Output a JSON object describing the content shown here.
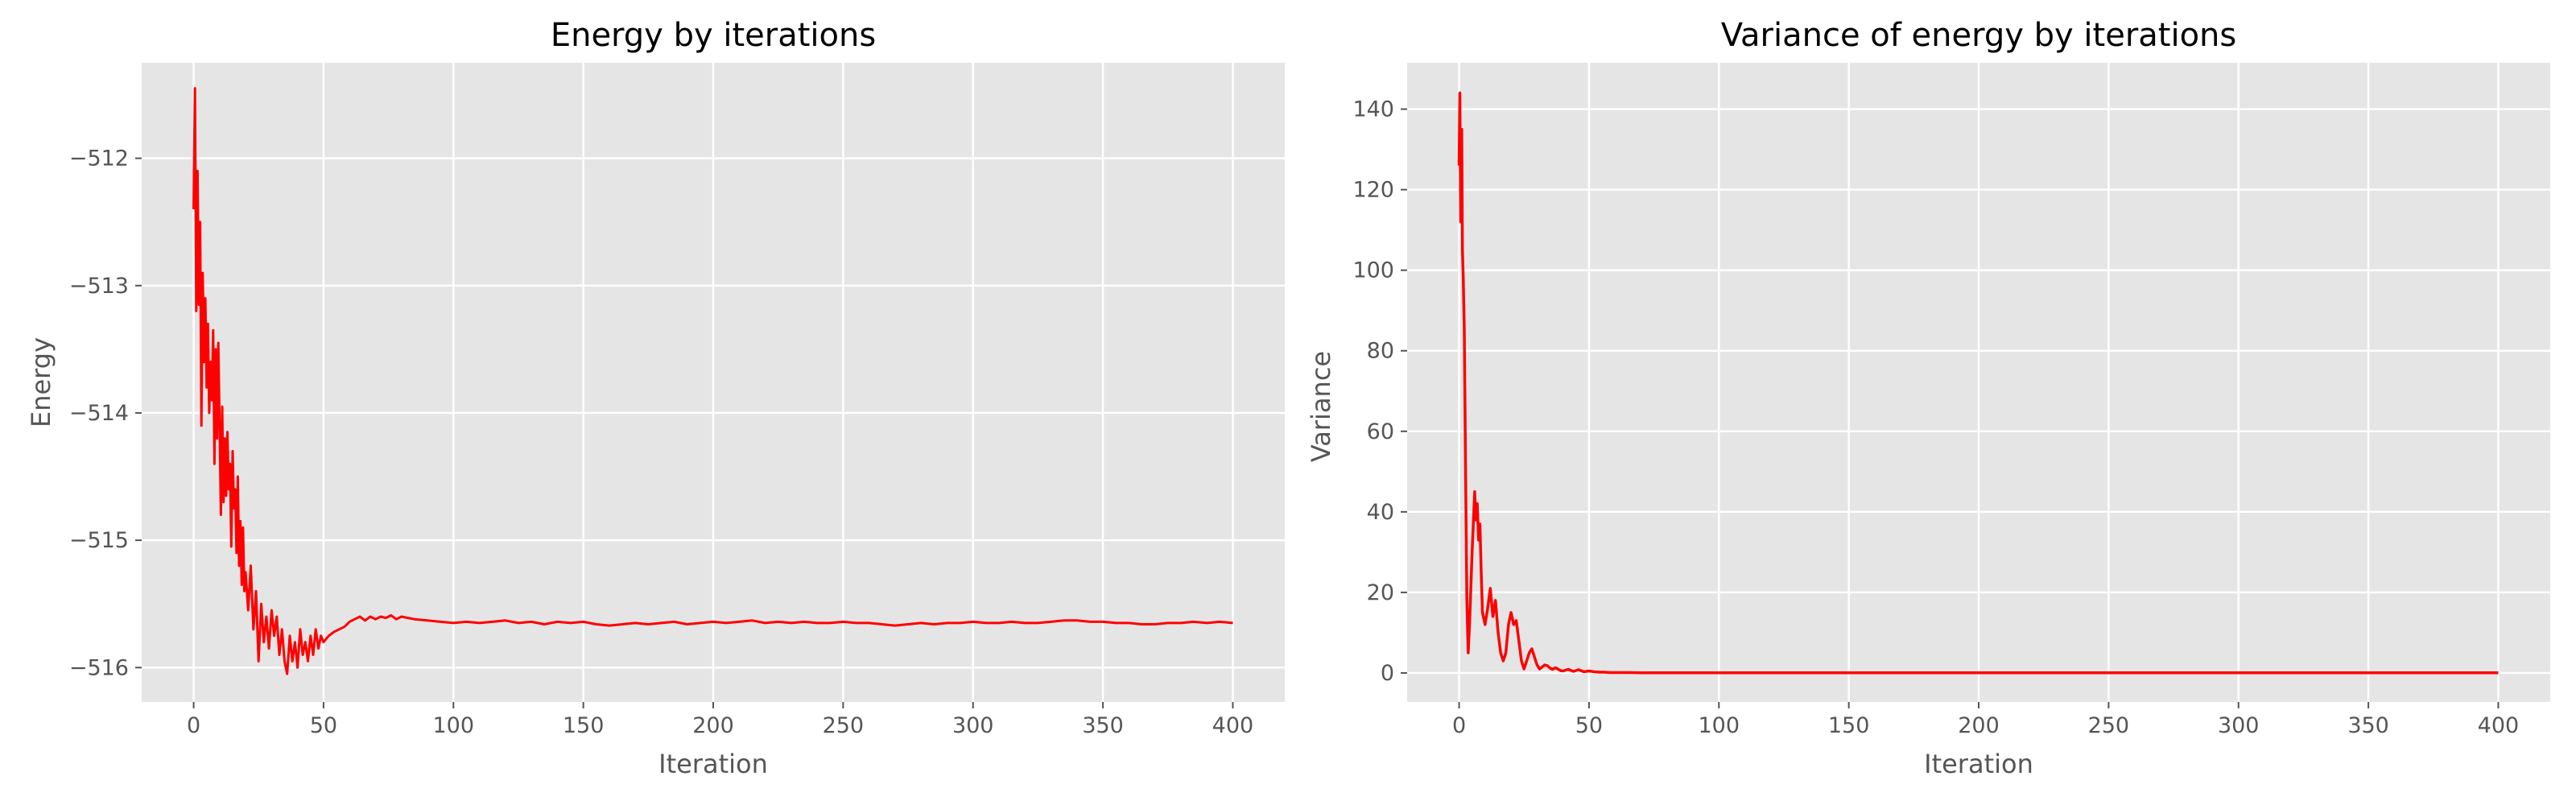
{
  "figure": {
    "line_color": "#ff0000",
    "axes_background": "#e5e5e5",
    "grid_color": "#ffffff",
    "style": "ggplot"
  },
  "chart_data": [
    {
      "id": "energy",
      "type": "line",
      "title": "Energy by iterations",
      "xlabel": "Iteration",
      "ylabel": "Energy",
      "xlim": [
        -20,
        420
      ],
      "ylim": [
        -516.27,
        -511.25
      ],
      "xticks": [
        0,
        50,
        100,
        150,
        200,
        250,
        300,
        350,
        400
      ],
      "xtick_labels": [
        "0",
        "50",
        "100",
        "150",
        "200",
        "250",
        "300",
        "350",
        "400"
      ],
      "yticks": [
        -516,
        -515,
        -514,
        -513,
        -512
      ],
      "ytick_labels": [
        "−516",
        "−515",
        "−514",
        "−513",
        "−512"
      ],
      "grid": true,
      "series": [
        {
          "color": "#ff0000",
          "x": [
            0,
            0.5,
            1,
            1.5,
            2,
            2.5,
            3,
            3.5,
            4,
            4.5,
            5,
            5.5,
            6,
            6.5,
            7,
            7.5,
            8,
            8.5,
            9,
            9.5,
            10,
            10.5,
            11,
            11.5,
            12,
            12.5,
            13,
            13.5,
            14,
            14.5,
            15,
            15.5,
            16,
            16.5,
            17,
            17.5,
            18,
            18.5,
            19,
            19.5,
            20,
            21,
            22,
            23,
            24,
            25,
            26,
            27,
            28,
            29,
            30,
            31,
            32,
            33,
            34,
            35,
            36,
            37,
            38,
            39,
            40,
            41,
            42,
            43,
            44,
            45,
            46,
            47,
            48,
            49,
            50,
            52,
            54,
            56,
            58,
            60,
            62,
            64,
            66,
            68,
            70,
            72,
            74,
            76,
            78,
            80,
            85,
            90,
            95,
            100,
            105,
            110,
            115,
            120,
            125,
            130,
            135,
            140,
            145,
            150,
            155,
            160,
            165,
            170,
            175,
            180,
            185,
            190,
            195,
            200,
            205,
            210,
            215,
            220,
            225,
            230,
            235,
            240,
            245,
            250,
            255,
            260,
            265,
            270,
            275,
            280,
            285,
            290,
            295,
            300,
            305,
            310,
            315,
            320,
            325,
            330,
            335,
            340,
            345,
            350,
            355,
            360,
            365,
            370,
            375,
            380,
            385,
            390,
            395,
            400
          ],
          "y": [
            -512.4,
            -511.45,
            -513.2,
            -512.1,
            -513.15,
            -512.5,
            -514.1,
            -512.9,
            -513.6,
            -513.1,
            -513.8,
            -513.3,
            -514.0,
            -513.6,
            -513.9,
            -513.35,
            -514.4,
            -513.5,
            -514.2,
            -513.45,
            -514.1,
            -514.8,
            -513.95,
            -514.7,
            -514.2,
            -514.65,
            -514.15,
            -514.6,
            -514.4,
            -515.05,
            -514.3,
            -514.75,
            -514.6,
            -515.1,
            -514.5,
            -515.2,
            -514.85,
            -515.35,
            -514.9,
            -515.4,
            -515.25,
            -515.55,
            -515.2,
            -515.7,
            -515.4,
            -515.95,
            -515.5,
            -515.8,
            -515.6,
            -515.85,
            -515.55,
            -515.75,
            -515.6,
            -515.9,
            -515.7,
            -515.95,
            -516.05,
            -515.75,
            -515.95,
            -515.8,
            -516.0,
            -515.7,
            -515.9,
            -515.8,
            -515.95,
            -515.75,
            -515.9,
            -515.7,
            -515.85,
            -515.75,
            -515.8,
            -515.75,
            -515.72,
            -515.7,
            -515.68,
            -515.64,
            -515.62,
            -515.6,
            -515.63,
            -515.6,
            -515.62,
            -515.6,
            -515.61,
            -515.59,
            -515.62,
            -515.6,
            -515.62,
            -515.63,
            -515.64,
            -515.65,
            -515.64,
            -515.65,
            -515.64,
            -515.63,
            -515.65,
            -515.64,
            -515.66,
            -515.64,
            -515.65,
            -515.64,
            -515.66,
            -515.67,
            -515.66,
            -515.65,
            -515.66,
            -515.65,
            -515.64,
            -515.66,
            -515.65,
            -515.64,
            -515.65,
            -515.64,
            -515.63,
            -515.65,
            -515.64,
            -515.65,
            -515.64,
            -515.65,
            -515.65,
            -515.64,
            -515.65,
            -515.65,
            -515.66,
            -515.67,
            -515.66,
            -515.65,
            -515.66,
            -515.65,
            -515.65,
            -515.64,
            -515.65,
            -515.65,
            -515.64,
            -515.65,
            -515.65,
            -515.64,
            -515.63,
            -515.63,
            -515.64,
            -515.64,
            -515.65,
            -515.65,
            -515.66,
            -515.66,
            -515.65,
            -515.65,
            -515.64,
            -515.65,
            -515.64,
            -515.65
          ]
        }
      ]
    },
    {
      "id": "variance",
      "type": "line",
      "title": "Variance of energy by iterations",
      "xlabel": "Iteration",
      "ylabel": "Variance",
      "xlim": [
        -20,
        420
      ],
      "ylim": [
        -7.2,
        151.5
      ],
      "xticks": [
        0,
        50,
        100,
        150,
        200,
        250,
        300,
        350,
        400
      ],
      "xtick_labels": [
        "0",
        "50",
        "100",
        "150",
        "200",
        "250",
        "300",
        "350",
        "400"
      ],
      "yticks": [
        0,
        20,
        40,
        60,
        80,
        100,
        120,
        140
      ],
      "ytick_labels": [
        "0",
        "20",
        "40",
        "60",
        "80",
        "100",
        "120",
        "140"
      ],
      "grid": true,
      "series": [
        {
          "color": "#ff0000",
          "x": [
            0,
            0.3,
            0.6,
            1,
            1.3,
            1.6,
            2,
            2.5,
            3,
            3.5,
            4,
            5,
            6,
            6.5,
            7,
            7.5,
            8,
            8.5,
            9,
            10,
            11,
            12,
            13,
            14,
            15,
            16,
            17,
            18,
            19,
            20,
            21,
            22,
            23,
            24,
            25,
            26,
            27,
            28,
            29,
            30,
            31,
            32,
            33,
            34,
            35,
            36,
            37,
            38,
            39,
            40,
            42,
            44,
            46,
            48,
            50,
            52,
            54,
            56,
            58,
            60,
            65,
            70,
            80,
            100,
            150,
            200,
            250,
            300,
            350,
            400
          ],
          "y": [
            126,
            144,
            112,
            135,
            105,
            98,
            85,
            50,
            18,
            5,
            12,
            30,
            45,
            38,
            42,
            33,
            37,
            25,
            15,
            12,
            16,
            21,
            14,
            18,
            10,
            5,
            3,
            5,
            12,
            15,
            12,
            13,
            8,
            3,
            1,
            3,
            5,
            6,
            4,
            2,
            1,
            1.5,
            2,
            1.8,
            1.2,
            0.9,
            1.3,
            1.0,
            0.6,
            0.5,
            0.9,
            0.4,
            0.8,
            0.3,
            0.5,
            0.3,
            0.2,
            0.2,
            0.1,
            0.1,
            0.1,
            0.05,
            0.05,
            0.04,
            0.03,
            0.03,
            0.03,
            0.03,
            0.03,
            0.03
          ]
        }
      ]
    }
  ]
}
